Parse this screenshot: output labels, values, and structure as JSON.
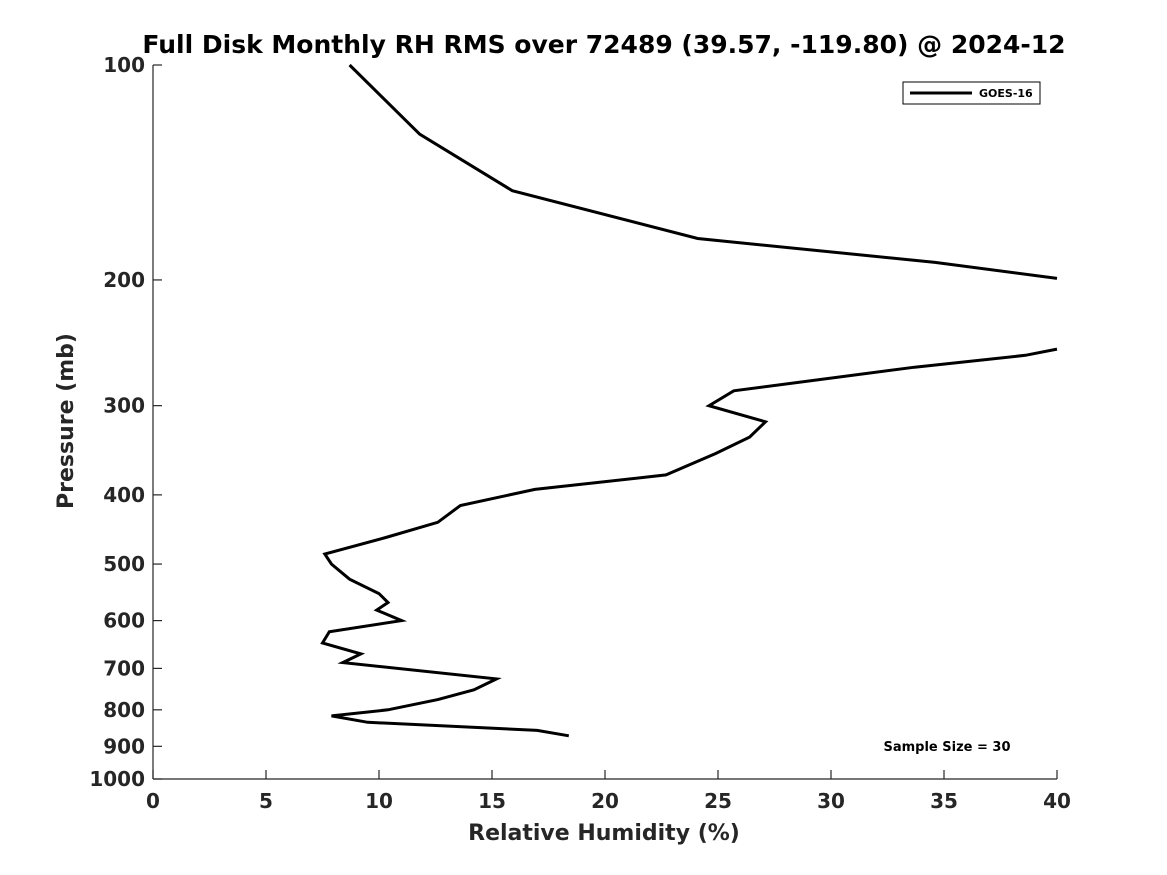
{
  "chart_data": {
    "type": "line",
    "title": "Full Disk Monthly RH RMS over 72489 (39.57, -119.80) @ 2024-12",
    "xlabel": "Relative Humidity (%)",
    "ylabel": "Pressure (mb)",
    "xlim": [
      0,
      40
    ],
    "ylim": [
      100,
      1000
    ],
    "y_scale": "log",
    "y_reversed": true,
    "x_ticks": [
      0,
      5,
      10,
      15,
      20,
      25,
      30,
      35,
      40
    ],
    "y_ticks": [
      100,
      200,
      300,
      400,
      500,
      600,
      700,
      800,
      900,
      1000
    ],
    "grid": false,
    "legend_position": "top-right",
    "annotation": "Sample Size = 30",
    "colors": {
      "line": "#000000",
      "axis": "#262626"
    },
    "series": [
      {
        "name": "GOES-16",
        "segments": [
          {
            "x": [
              8.7,
              11.8,
              15.9,
              24.1,
              34.6,
              40.0
            ],
            "y": [
              100,
              125,
              150,
              175,
              189,
              199
            ]
          },
          {
            "x": [
              40.0,
              38.6,
              33.7,
              25.7,
              24.6,
              27.1,
              26.4,
              24.9,
              22.7,
              16.9,
              13.6,
              12.6,
              10.3,
              7.6,
              7.9,
              8.7,
              10.0,
              10.4,
              9.9,
              11.0,
              7.8,
              7.5,
              9.2,
              8.4,
              15.2,
              14.2,
              12.6,
              10.4,
              7.9,
              9.5,
              17.0,
              18.4
            ],
            "y": [
              250,
              255,
              265,
              286,
              300,
              316,
              332,
              350,
              375,
              393,
              414,
              437,
              459,
              484,
              500,
              525,
              550,
              566,
              580,
              600,
              622,
              645,
              668,
              687,
              724,
              750,
              774,
              800,
              816,
              833,
              855,
              870
            ]
          }
        ]
      }
    ]
  }
}
